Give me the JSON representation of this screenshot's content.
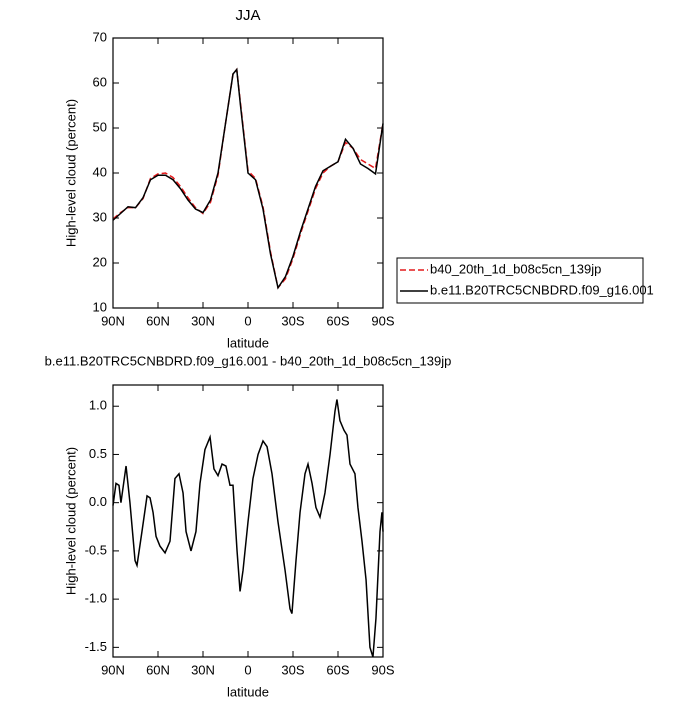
{
  "chart_data": [
    {
      "type": "line",
      "title": "JJA",
      "xlabel": "latitude",
      "ylabel": "High-level cloud (percent)",
      "x": [
        90,
        85,
        80,
        75,
        70,
        65,
        60,
        55,
        50,
        45,
        40,
        35,
        30,
        25,
        20,
        15,
        10,
        7.5,
        5,
        0,
        -5,
        -10,
        -15,
        -20,
        -25,
        -30,
        -35,
        -40,
        -45,
        -50,
        -55,
        -60,
        -65,
        -70,
        -75,
        -80,
        -85,
        -90
      ],
      "series": [
        {
          "name": "b40_20th_1d_b08c5cn_139jp",
          "color": "#e41a1c",
          "dash": true,
          "values": [
            29.8,
            31.2,
            32.3,
            32.3,
            34.3,
            38.8,
            39.8,
            40,
            39,
            37,
            34.5,
            32.3,
            31,
            33.5,
            39.5,
            51,
            62,
            63,
            55.5,
            40.5,
            38.8,
            32.5,
            22.5,
            14.5,
            16.5,
            21,
            26.5,
            31.5,
            36.5,
            40,
            41.5,
            42.5,
            46.8,
            45.5,
            43,
            42,
            41,
            51
          ]
        },
        {
          "name": "b.e11.B20TRC5CNBDRD.f09_g16.001",
          "color": "#000000",
          "dash": false,
          "values": [
            29.5,
            31,
            32.5,
            32.3,
            34.5,
            38.5,
            39.5,
            39.5,
            38.5,
            36.5,
            34,
            32,
            31.2,
            34,
            40,
            51,
            62,
            63,
            55,
            40,
            38.5,
            32,
            22,
            14.5,
            17,
            21.5,
            27,
            32,
            37,
            40.5,
            41.5,
            42.5,
            47.5,
            45.5,
            42,
            41,
            39.8,
            51
          ]
        }
      ],
      "xlim": [
        90,
        -90
      ],
      "ylim": [
        10,
        70
      ],
      "xticks": [
        {
          "value": 90,
          "label": "90N"
        },
        {
          "value": 60,
          "label": "60N"
        },
        {
          "value": 30,
          "label": "30N"
        },
        0,
        {
          "value": -30,
          "label": "30S"
        },
        {
          "value": -60,
          "label": "60S"
        },
        {
          "value": -90,
          "label": "90S"
        }
      ],
      "yticks": [
        10,
        20,
        30,
        40,
        50,
        60,
        70
      ],
      "legend": "outside-right"
    },
    {
      "type": "line",
      "title": "b.e11.B20TRC5CNBDRD.f09_g16.001 - b40_20th_1d_b08c5cn_139jp",
      "xlabel": "latitude",
      "ylabel": "High-level cloud (percent)",
      "color": "#000000",
      "x": [
        90,
        88,
        86,
        84.7,
        81.3,
        78.7,
        75.3,
        74,
        70.7,
        67.3,
        65.3,
        63.3,
        61.3,
        58.7,
        55.3,
        52,
        48.7,
        46,
        43.3,
        41.3,
        38,
        34.7,
        32,
        28.7,
        25.3,
        22.7,
        20,
        17.3,
        14.7,
        12,
        10,
        7.3,
        5.3,
        3.3,
        0,
        -3.3,
        -6.7,
        -10,
        -12.7,
        -16,
        -20,
        -24.7,
        -28,
        -29.3,
        -32,
        -34.7,
        -38,
        -40,
        -42.7,
        -45.3,
        -48,
        -51.3,
        -54.7,
        -58,
        -59.3,
        -61.3,
        -64,
        -66,
        -68,
        -71.3,
        -73.3,
        -76,
        -78.7,
        -81.3,
        -83.3,
        -85.3,
        -88,
        -89.3,
        -90
      ],
      "values": [
        -0.03,
        0.2,
        0.18,
        0.0,
        0.38,
        0.0,
        -0.6,
        -0.65,
        -0.3,
        0.07,
        0.05,
        -0.1,
        -0.35,
        -0.45,
        -0.52,
        -0.4,
        0.25,
        0.3,
        0.1,
        -0.3,
        -0.5,
        -0.3,
        0.2,
        0.55,
        0.68,
        0.35,
        0.28,
        0.4,
        0.38,
        0.18,
        0.18,
        -0.5,
        -0.92,
        -0.7,
        -0.2,
        0.25,
        0.5,
        0.64,
        0.58,
        0.3,
        -0.2,
        -0.7,
        -1.1,
        -1.15,
        -0.6,
        -0.1,
        0.3,
        0.4,
        0.2,
        -0.05,
        -0.15,
        0.1,
        0.5,
        0.95,
        1.07,
        0.85,
        0.75,
        0.7,
        0.4,
        0.3,
        -0.05,
        -0.4,
        -0.8,
        -1.5,
        -1.6,
        -1.2,
        -0.3,
        -0.1,
        -0.3
      ],
      "xlim": [
        90,
        -90
      ],
      "ylim": [
        -1.6,
        1.22
      ],
      "xticks": [
        {
          "value": 90,
          "label": "90N"
        },
        {
          "value": 60,
          "label": "60N"
        },
        {
          "value": 30,
          "label": "30N"
        },
        0,
        {
          "value": -30,
          "label": "30S"
        },
        {
          "value": -60,
          "label": "60S"
        },
        {
          "value": -90,
          "label": "90S"
        }
      ],
      "yticks": [
        {
          "value": 1,
          "label": "1.0"
        },
        0.5,
        {
          "value": 0,
          "label": "0.0"
        },
        -0.5,
        {
          "value": -1,
          "label": "-1.0"
        },
        -1.5
      ]
    }
  ]
}
